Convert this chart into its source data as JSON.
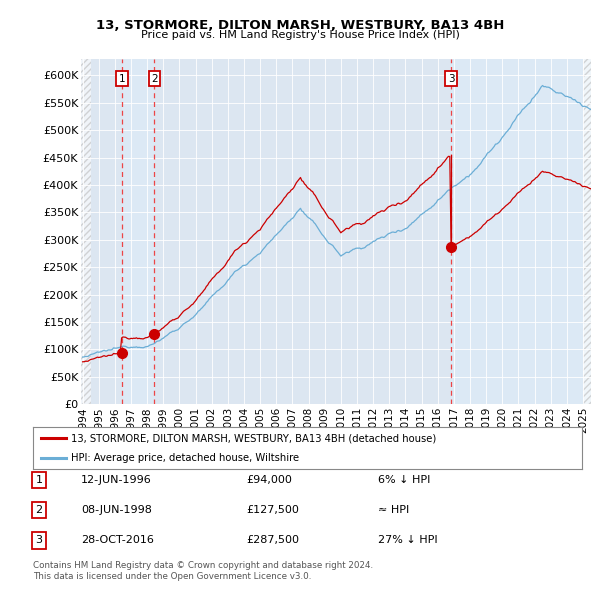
{
  "title1": "13, STORMORE, DILTON MARSH, WESTBURY, BA13 4BH",
  "title2": "Price paid vs. HM Land Registry's House Price Index (HPI)",
  "xlim_start": 1993.9,
  "xlim_end": 2025.5,
  "ylim_min": 0,
  "ylim_max": 630000,
  "yticks": [
    0,
    50000,
    100000,
    150000,
    200000,
    250000,
    300000,
    350000,
    400000,
    450000,
    500000,
    550000,
    600000
  ],
  "ytick_labels": [
    "£0",
    "£50K",
    "£100K",
    "£150K",
    "£200K",
    "£250K",
    "£300K",
    "£350K",
    "£400K",
    "£450K",
    "£500K",
    "£550K",
    "£600K"
  ],
  "xticks": [
    1994,
    1995,
    1996,
    1997,
    1998,
    1999,
    2000,
    2001,
    2002,
    2003,
    2004,
    2005,
    2006,
    2007,
    2008,
    2009,
    2010,
    2011,
    2012,
    2013,
    2014,
    2015,
    2016,
    2017,
    2018,
    2019,
    2020,
    2021,
    2022,
    2023,
    2024,
    2025
  ],
  "sale_dates": [
    1996.44,
    1998.44,
    2016.83
  ],
  "sale_prices": [
    94000,
    127500,
    287500
  ],
  "sale_labels": [
    "1",
    "2",
    "3"
  ],
  "vline_dates": [
    1996.44,
    1998.44,
    2016.83
  ],
  "hpi_color": "#6baed6",
  "sale_color": "#cc0000",
  "vline_color": "#ee3333",
  "shade_color": "#dce9f5",
  "legend_sale_label": "13, STORMORE, DILTON MARSH, WESTBURY, BA13 4BH (detached house)",
  "legend_hpi_label": "HPI: Average price, detached house, Wiltshire",
  "table_rows": [
    {
      "num": "1",
      "date": "12-JUN-1996",
      "price": "£94,000",
      "vs": "6% ↓ HPI"
    },
    {
      "num": "2",
      "date": "08-JUN-1998",
      "price": "£127,500",
      "vs": "≈ HPI"
    },
    {
      "num": "3",
      "date": "28-OCT-2016",
      "price": "£287,500",
      "vs": "27% ↓ HPI"
    }
  ],
  "footnote1": "Contains HM Land Registry data © Crown copyright and database right 2024.",
  "footnote2": "This data is licensed under the Open Government Licence v3.0.",
  "background_chart": "#dce6f1",
  "background_fig": "#ffffff"
}
